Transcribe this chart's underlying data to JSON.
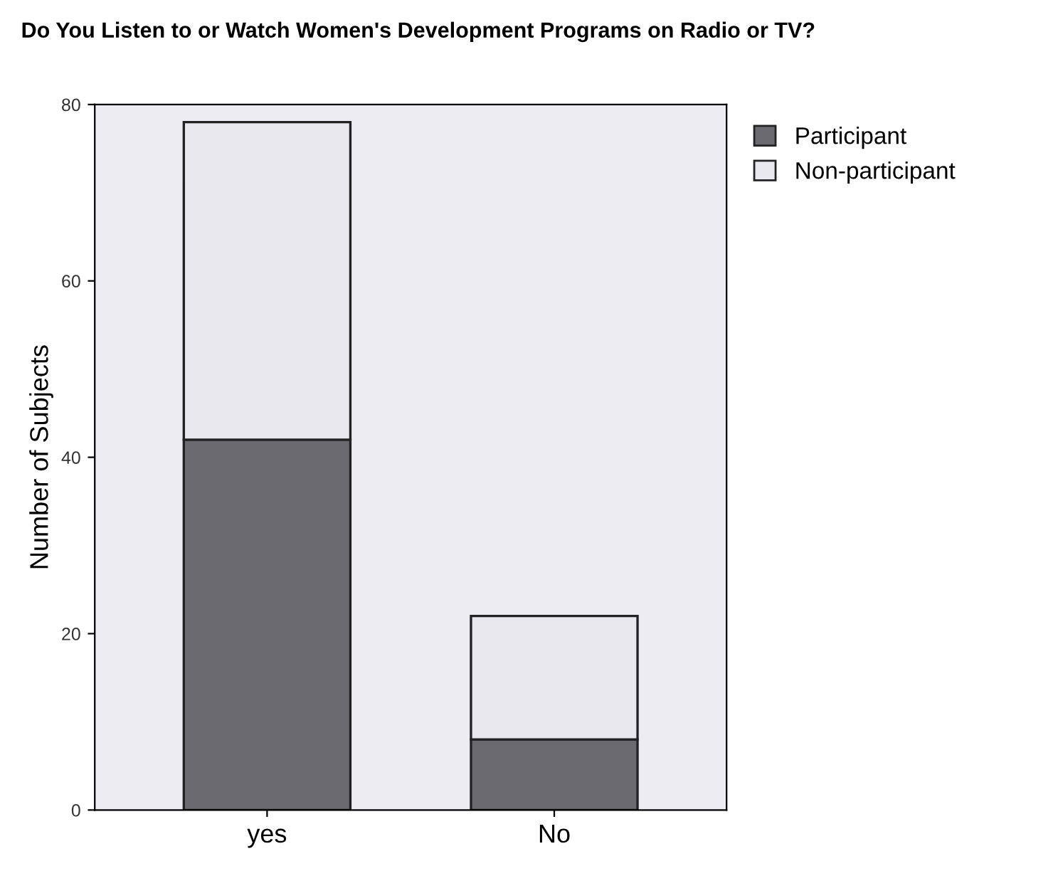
{
  "chart_data": {
    "type": "bar",
    "title": "Do You Listen to or Watch Women's Development Programs on Radio or TV?",
    "ylabel": "Number of Subjects",
    "categories": [
      "yes",
      "No"
    ],
    "stacked": true,
    "series": [
      {
        "name": "Participant",
        "color": "#6a6a70",
        "values": [
          42,
          8
        ]
      },
      {
        "name": "Non-participant",
        "color": "#e8e8ee",
        "values": [
          36,
          14
        ]
      }
    ],
    "ylim": [
      0,
      80
    ],
    "yticks": [
      0,
      20,
      40,
      60,
      80
    ],
    "grid": false,
    "legend": "top right"
  }
}
